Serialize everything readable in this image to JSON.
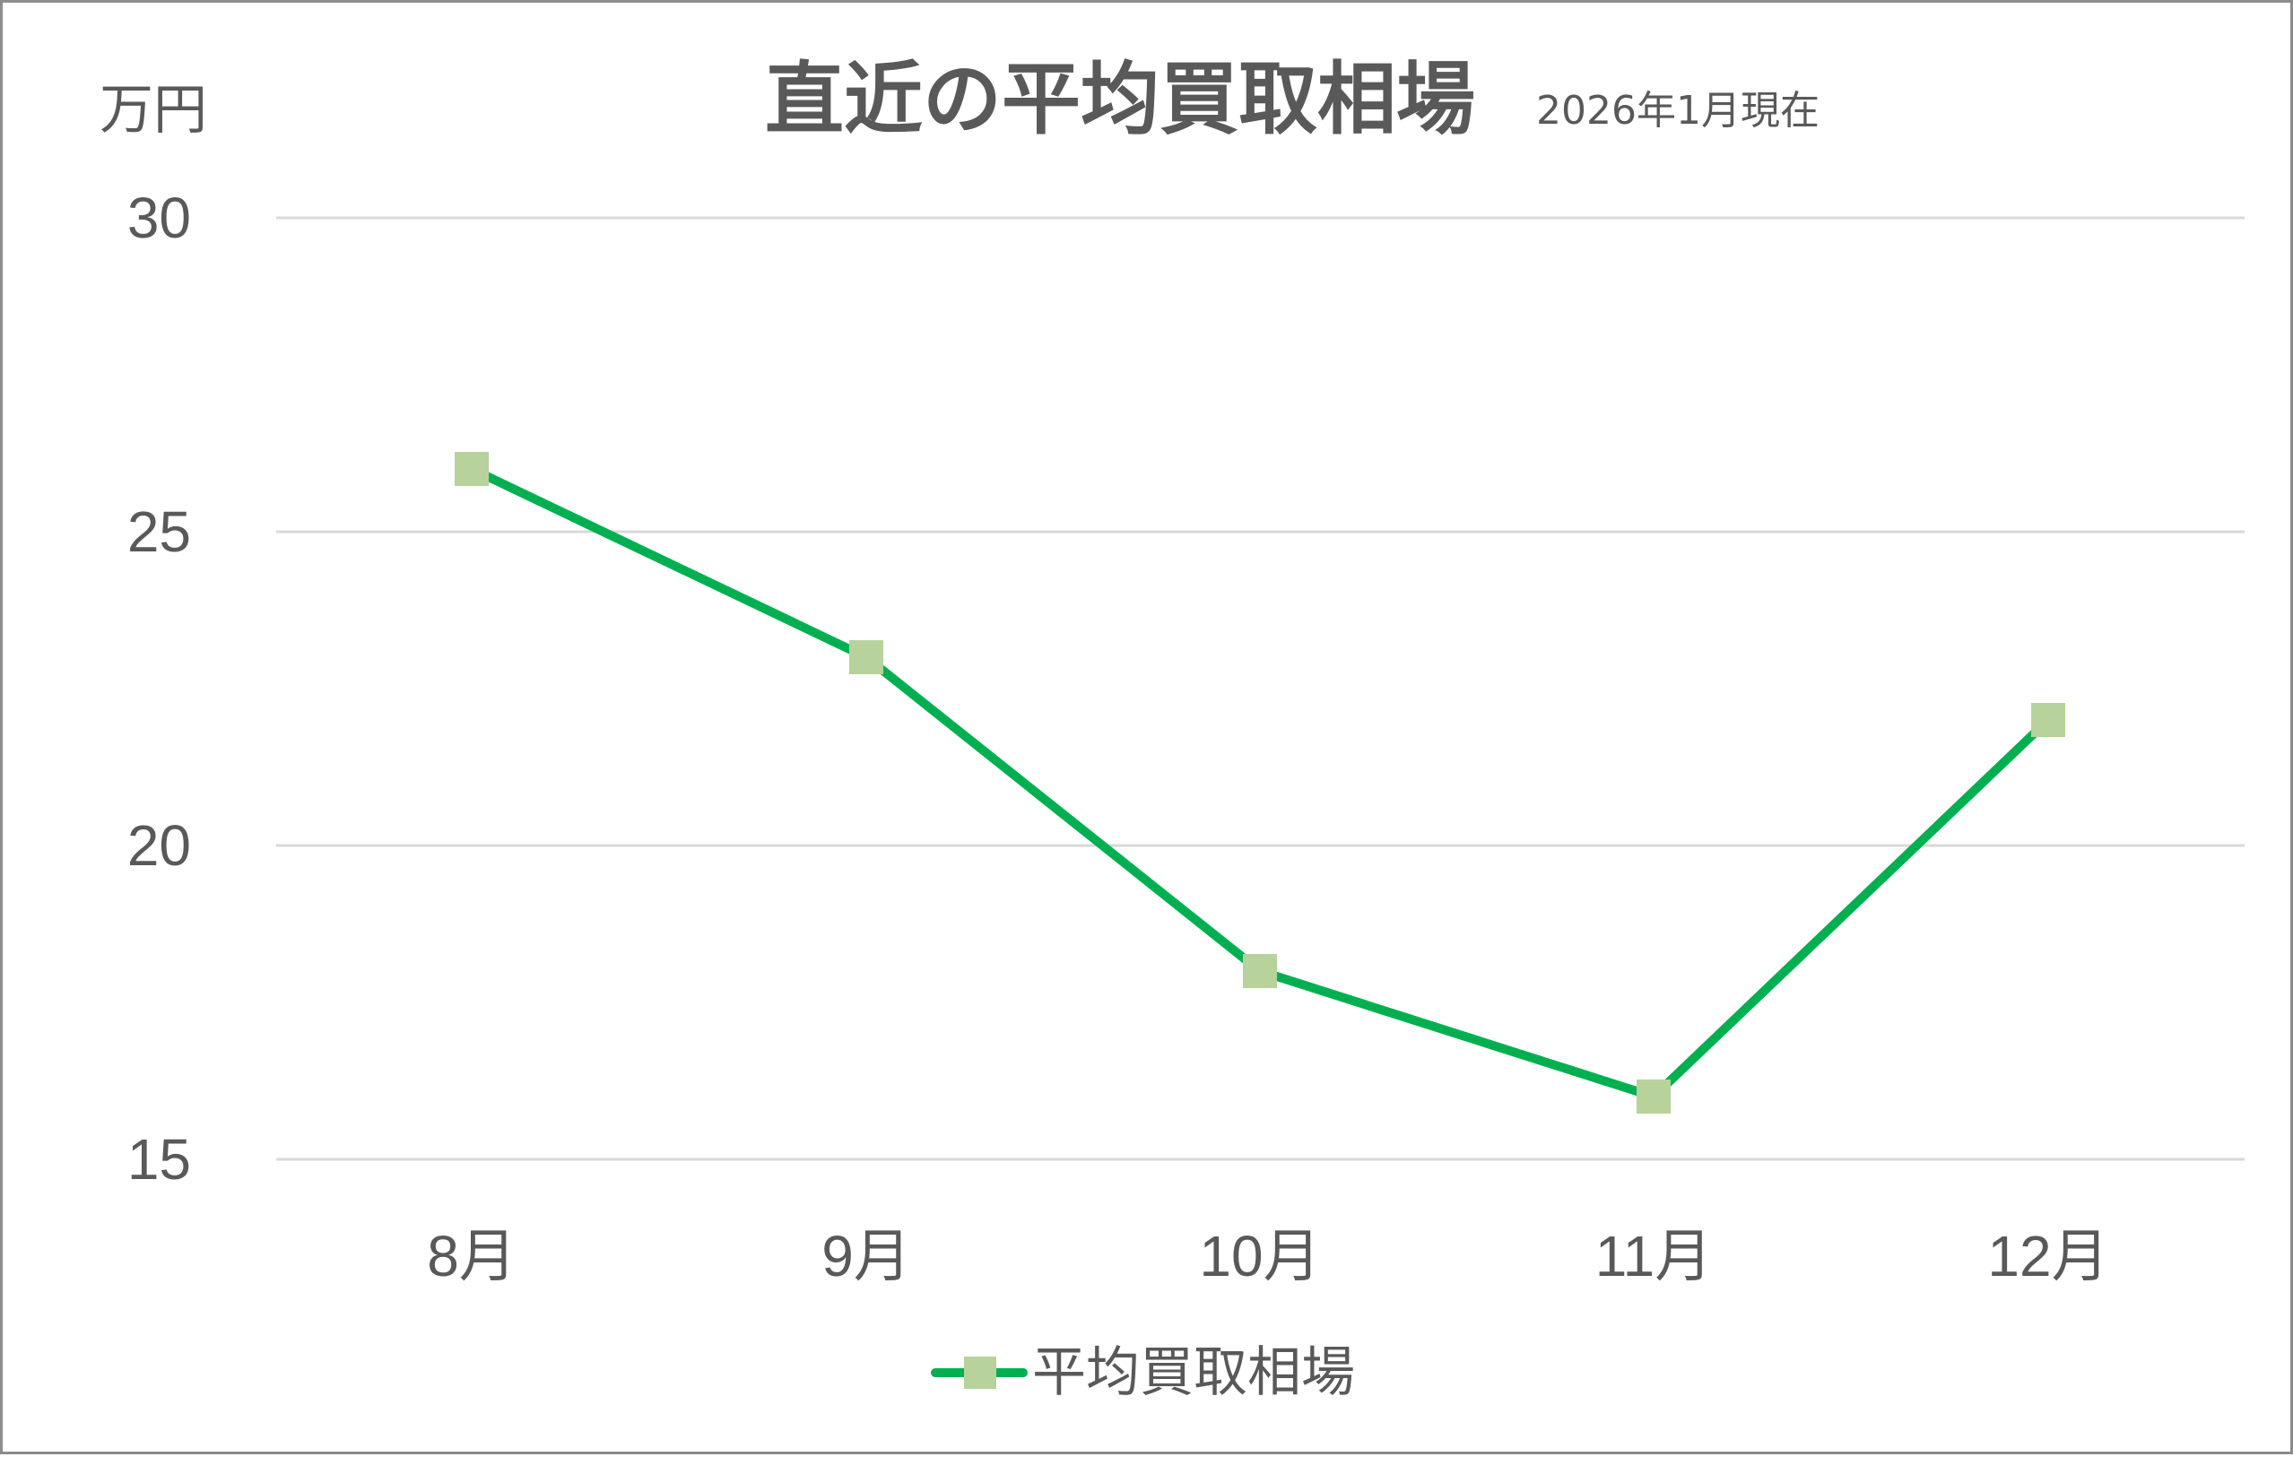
{
  "chart_data": {
    "type": "line",
    "title": "直近の平均買取相場",
    "subtitle": "2026年1月現在",
    "ylabel": "万円",
    "xlabel": "",
    "categories": [
      "8月",
      "9月",
      "10月",
      "11月",
      "12月"
    ],
    "series": [
      {
        "name": "平均買取相場",
        "values": [
          26,
          23,
          18,
          16,
          22
        ],
        "line_color": "#00b050",
        "marker": "square",
        "marker_color": "#b7d29b"
      }
    ],
    "ylim": [
      15,
      30
    ],
    "yticks": [
      "15",
      "20",
      "25",
      "30"
    ],
    "grid": true,
    "legend_position": "bottom"
  }
}
